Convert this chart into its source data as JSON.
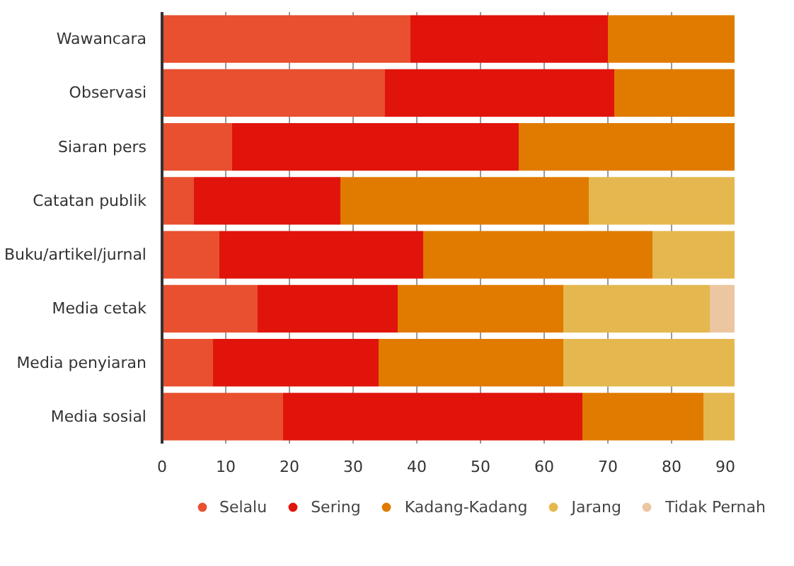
{
  "chart_data": {
    "type": "bar",
    "orientation": "horizontal",
    "stacked": true,
    "categories": [
      "Wawancara",
      "Observasi",
      "Siaran pers",
      "Catatan publik",
      "Buku/artikel/jurnal",
      "Media cetak",
      "Media penyiaran",
      "Media sosial"
    ],
    "series": [
      {
        "name": "Selalu",
        "color": "#e8502f",
        "values": [
          39,
          35,
          11,
          5,
          9,
          15,
          8,
          19
        ]
      },
      {
        "name": "Sering",
        "color": "#e0140a",
        "values": [
          31,
          36,
          45,
          23,
          32,
          22,
          26,
          47
        ]
      },
      {
        "name": "Kadang-Kadang",
        "color": "#e07b00",
        "values": [
          20,
          19,
          34,
          39,
          36,
          26,
          29,
          19
        ]
      },
      {
        "name": "Jarang",
        "color": "#e4b84e",
        "values": [
          null,
          null,
          null,
          23,
          13,
          23,
          27,
          5
        ]
      },
      {
        "name": "Tidak Pernah",
        "color": "#ecc6a0",
        "values": [
          null,
          null,
          null,
          null,
          null,
          4,
          null,
          null
        ]
      }
    ],
    "xlim": [
      0,
      90
    ],
    "xticks": [
      0,
      10,
      20,
      30,
      40,
      50,
      60,
      70,
      80,
      90
    ],
    "grid": "x",
    "legend": "bottom",
    "marker": "circle"
  }
}
